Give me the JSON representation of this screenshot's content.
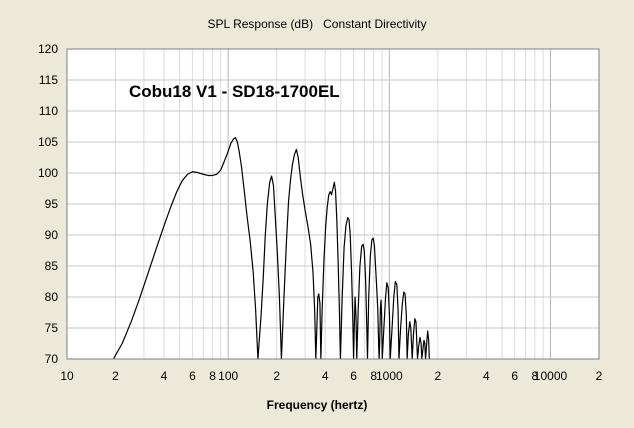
{
  "chart_data": {
    "type": "line",
    "title": "SPL Response (dB)   Constant Directivity",
    "xlabel": "Frequency (hertz)",
    "ylabel": "",
    "x_scale": "log",
    "xlim": [
      10,
      20000
    ],
    "ylim": [
      70,
      120
    ],
    "y_ticks": [
      70,
      75,
      80,
      85,
      90,
      95,
      100,
      105,
      110,
      115,
      120
    ],
    "x_ticks": [
      {
        "value": 10,
        "label": "10"
      },
      {
        "value": 20,
        "label": "2"
      },
      {
        "value": 40,
        "label": "4"
      },
      {
        "value": 60,
        "label": "6"
      },
      {
        "value": 80,
        "label": "8"
      },
      {
        "value": 100,
        "label": "100"
      },
      {
        "value": 200,
        "label": "2"
      },
      {
        "value": 400,
        "label": "4"
      },
      {
        "value": 600,
        "label": "6"
      },
      {
        "value": 800,
        "label": "8"
      },
      {
        "value": 1000,
        "label": "1000"
      },
      {
        "value": 2000,
        "label": "2"
      },
      {
        "value": 4000,
        "label": "4"
      },
      {
        "value": 6000,
        "label": "6"
      },
      {
        "value": 8000,
        "label": "8"
      },
      {
        "value": 10000,
        "label": "10000"
      },
      {
        "value": 20000,
        "label": "2"
      }
    ],
    "grid": true,
    "annotation": "Cobu18 V1 - SD18-1700EL",
    "series": [
      {
        "color": "#000000",
        "points": [
          [
            19.4,
            70
          ],
          [
            22,
            72.5
          ],
          [
            25,
            76
          ],
          [
            28,
            79.5
          ],
          [
            32,
            84
          ],
          [
            36,
            88
          ],
          [
            40,
            91.5
          ],
          [
            44,
            94.5
          ],
          [
            48,
            97
          ],
          [
            52,
            98.8
          ],
          [
            56,
            99.8
          ],
          [
            60,
            100.2
          ],
          [
            64,
            100.1
          ],
          [
            70,
            99.8
          ],
          [
            75,
            99.6
          ],
          [
            80,
            99.6
          ],
          [
            85,
            99.8
          ],
          [
            90,
            100.5
          ],
          [
            95,
            102
          ],
          [
            100,
            103.5
          ],
          [
            104,
            104.8
          ],
          [
            108,
            105.5
          ],
          [
            111,
            105.7
          ],
          [
            114,
            105
          ],
          [
            117,
            103.5
          ],
          [
            121,
            101
          ],
          [
            126,
            97
          ],
          [
            131,
            93
          ],
          [
            137,
            89
          ],
          [
            143,
            84
          ],
          [
            148,
            78
          ],
          [
            153,
            70
          ],
          [
            160,
            77
          ],
          [
            165,
            83
          ],
          [
            170,
            90
          ],
          [
            175,
            95
          ],
          [
            181,
            98.5
          ],
          [
            186,
            99.5
          ],
          [
            191,
            98
          ],
          [
            196,
            93
          ],
          [
            202,
            87
          ],
          [
            208,
            80
          ],
          [
            214,
            70
          ],
          [
            222,
            80
          ],
          [
            230,
            89
          ],
          [
            237,
            95.5
          ],
          [
            244,
            99
          ],
          [
            251,
            101.5
          ],
          [
            258,
            103
          ],
          [
            265,
            103.8
          ],
          [
            272,
            102.5
          ],
          [
            280,
            99.5
          ],
          [
            290,
            96.5
          ],
          [
            300,
            94
          ],
          [
            312,
            91.5
          ],
          [
            325,
            88.5
          ],
          [
            336,
            84
          ],
          [
            344,
            78
          ],
          [
            350,
            70
          ],
          [
            354,
            74
          ],
          [
            360,
            80
          ],
          [
            365,
            80.5
          ],
          [
            371,
            79
          ],
          [
            376,
            70
          ],
          [
            383,
            78
          ],
          [
            393,
            86
          ],
          [
            403,
            91.5
          ],
          [
            412,
            94.5
          ],
          [
            421,
            96.5
          ],
          [
            430,
            97
          ],
          [
            438,
            96.5
          ],
          [
            447,
            97.5
          ],
          [
            456,
            98.5
          ],
          [
            464,
            97
          ],
          [
            473,
            92
          ],
          [
            482,
            85
          ],
          [
            491,
            77
          ],
          [
            497,
            70
          ],
          [
            510,
            80
          ],
          [
            524,
            88
          ],
          [
            538,
            91.5
          ],
          [
            552,
            92.8
          ],
          [
            562,
            92.5
          ],
          [
            572,
            90
          ],
          [
            583,
            84
          ],
          [
            594,
            76
          ],
          [
            600,
            70
          ],
          [
            606,
            75
          ],
          [
            613,
            80
          ],
          [
            621,
            77
          ],
          [
            628,
            70
          ],
          [
            641,
            78
          ],
          [
            657,
            85
          ],
          [
            674,
            88.2
          ],
          [
            688,
            88.5
          ],
          [
            699,
            87.5
          ],
          [
            712,
            83
          ],
          [
            725,
            75
          ],
          [
            732,
            70
          ],
          [
            745,
            80
          ],
          [
            762,
            86.5
          ],
          [
            779,
            89.2
          ],
          [
            794,
            89.5
          ],
          [
            808,
            88.3
          ],
          [
            821,
            85
          ],
          [
            835,
            81.5
          ],
          [
            848,
            78
          ],
          [
            859,
            72
          ],
          [
            865,
            70
          ],
          [
            872,
            73
          ],
          [
            880,
            78
          ],
          [
            888,
            79.5
          ],
          [
            896,
            77
          ],
          [
            904,
            70
          ],
          [
            925,
            75
          ],
          [
            948,
            80
          ],
          [
            965,
            82.3
          ],
          [
            984,
            81.5
          ],
          [
            1002,
            77
          ],
          [
            1013,
            70
          ],
          [
            1040,
            75
          ],
          [
            1066,
            80
          ],
          [
            1090,
            82.5
          ],
          [
            1113,
            82
          ],
          [
            1133,
            78
          ],
          [
            1148,
            70
          ],
          [
            1175,
            75
          ],
          [
            1205,
            79
          ],
          [
            1230,
            80.8
          ],
          [
            1252,
            80.5
          ],
          [
            1275,
            77
          ],
          [
            1290,
            70
          ],
          [
            1313,
            74
          ],
          [
            1339,
            76
          ],
          [
            1359,
            75
          ],
          [
            1376,
            72
          ],
          [
            1387,
            70
          ],
          [
            1412,
            74
          ],
          [
            1440,
            76.5
          ],
          [
            1463,
            76
          ],
          [
            1482,
            72.5
          ],
          [
            1496,
            70
          ],
          [
            1520,
            72
          ],
          [
            1550,
            73.5
          ],
          [
            1575,
            72.5
          ],
          [
            1590,
            70
          ],
          [
            1615,
            71.5
          ],
          [
            1640,
            73
          ],
          [
            1660,
            72.5
          ],
          [
            1678,
            70
          ],
          [
            1700,
            72
          ],
          [
            1730,
            74.5
          ],
          [
            1755,
            73
          ],
          [
            1770,
            70
          ]
        ]
      }
    ]
  }
}
